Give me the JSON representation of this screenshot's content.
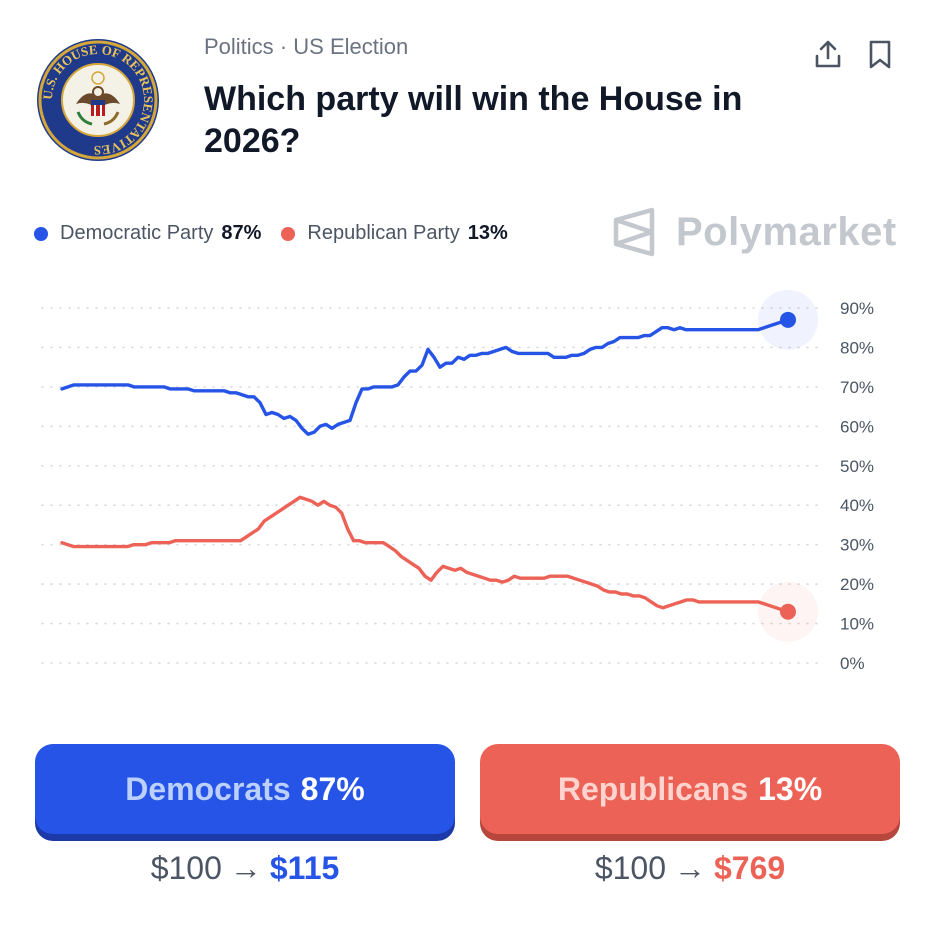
{
  "header": {
    "category": "Politics",
    "separator": "·",
    "subcategory": "US Election",
    "title": "Which party will win the House in 2026?",
    "seal_text": "U.S. HOUSE OF REPRESENTATIVES"
  },
  "legend": {
    "items": [
      {
        "label": "Democratic Party",
        "value": "87%",
        "color": "#2554e6"
      },
      {
        "label": "Republican Party",
        "value": "13%",
        "color": "#ec6256"
      }
    ]
  },
  "brand": {
    "name": "Polymarket"
  },
  "chart_data": {
    "type": "line",
    "ylim": [
      0,
      90
    ],
    "yticks": [
      "90%",
      "80%",
      "70%",
      "60%",
      "50%",
      "40%",
      "30%",
      "20%",
      "10%",
      "0%"
    ],
    "grid": true,
    "series": [
      {
        "name": "Democratic Party",
        "color": "#2554e6",
        "values": [
          69.5,
          70,
          70.5,
          70.5,
          70.5,
          70.5,
          70.5,
          70.5,
          70.5,
          70.5,
          70.5,
          70.5,
          70,
          70,
          70,
          70,
          70,
          70,
          69.5,
          69.5,
          69.5,
          69.5,
          69,
          69,
          69,
          69,
          69,
          69,
          68.5,
          68.5,
          68,
          67.5,
          67.5,
          66,
          63,
          63.5,
          63,
          62,
          62.5,
          61.5,
          59.5,
          58,
          58.5,
          60,
          60.5,
          59.5,
          60.5,
          61,
          61.5,
          66,
          69.5,
          69.5,
          70,
          70,
          70,
          70,
          70.5,
          72.5,
          74,
          74,
          75.5,
          79.5,
          77.5,
          75,
          76,
          76,
          77.5,
          77,
          78,
          78,
          78.5,
          78.5,
          79,
          79.5,
          80,
          79,
          78.5,
          78.5,
          78.5,
          78.5,
          78.5,
          78.5,
          77.5,
          77.5,
          77.5,
          78,
          78,
          78.5,
          79.5,
          80,
          80,
          81,
          81.5,
          82.5,
          82.5,
          82.5,
          82.5,
          83,
          83,
          84,
          85,
          85,
          84.5,
          85,
          84.5,
          84.5,
          84.5,
          84.5,
          84.5,
          84.5,
          84.5,
          84.5,
          84.5,
          84.5,
          84.5,
          84.5,
          84.5,
          85,
          85.5,
          86,
          86.5,
          87
        ]
      },
      {
        "name": "Republican Party",
        "color": "#ec6256",
        "values": [
          30.5,
          30,
          29.5,
          29.5,
          29.5,
          29.5,
          29.5,
          29.5,
          29.5,
          29.5,
          29.5,
          29.5,
          30,
          30,
          30,
          30.5,
          30.5,
          30.5,
          30.5,
          31,
          31,
          31,
          31,
          31,
          31,
          31,
          31,
          31,
          31,
          31,
          31,
          32,
          33,
          34,
          36,
          37,
          38,
          39,
          40,
          41,
          42,
          41.5,
          41,
          40,
          41,
          40,
          39.5,
          38,
          34,
          31,
          31,
          30.5,
          30.5,
          30.5,
          30.5,
          29.5,
          28.5,
          27,
          26,
          25,
          24,
          22,
          21,
          23,
          24.5,
          24,
          23.5,
          24,
          23,
          22.5,
          22,
          21.5,
          21,
          21,
          20.5,
          21,
          22,
          21.5,
          21.5,
          21.5,
          21.5,
          21.5,
          22,
          22,
          22,
          22,
          21.5,
          21,
          20.5,
          20,
          19.5,
          18.5,
          18,
          18,
          17.5,
          17.5,
          17,
          17,
          16.5,
          15.5,
          14.5,
          14,
          14.5,
          15,
          15.5,
          16,
          16,
          15.5,
          15.5,
          15.5,
          15.5,
          15.5,
          15.5,
          15.5,
          15.5,
          15.5,
          15.5,
          15.5,
          15,
          14.5,
          14,
          13.5,
          13
        ]
      }
    ]
  },
  "buttons": {
    "democrats": {
      "label": "Democrats",
      "pct": "87%"
    },
    "republicans": {
      "label": "Republicans",
      "pct": "13%"
    }
  },
  "payouts": {
    "democrats": {
      "stake": "$100",
      "arrow": "→",
      "win": "$115"
    },
    "republicans": {
      "stake": "$100",
      "arrow": "→",
      "win": "$769"
    }
  }
}
